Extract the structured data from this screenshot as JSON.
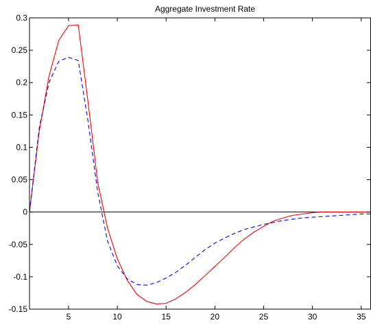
{
  "chart_data": {
    "type": "line",
    "title": "Aggregate Investment Rate",
    "xlabel": "",
    "ylabel": "",
    "xlim": [
      1,
      36
    ],
    "ylim": [
      -0.15,
      0.3
    ],
    "x_ticks": [
      5,
      10,
      15,
      20,
      25,
      30,
      35
    ],
    "y_ticks": [
      -0.15,
      -0.1,
      -0.05,
      0,
      0.05,
      0.1,
      0.15,
      0.2,
      0.25,
      0.3
    ],
    "y_tick_labels": [
      "-0.15",
      "-0.1",
      "-0.05",
      "0",
      "0.05",
      "0.1",
      "0.15",
      "0.2",
      "0.25",
      "0.3"
    ],
    "x_tick_labels": [
      "5",
      "10",
      "15",
      "20",
      "25",
      "30",
      "35"
    ],
    "zero_line": true,
    "grid": false,
    "legend": "none",
    "series": [
      {
        "color": "#ff0000",
        "style": "solid",
        "x": [
          1,
          2,
          3,
          4,
          5,
          6,
          7,
          8,
          9,
          10,
          11,
          12,
          13,
          14,
          15,
          16,
          17,
          18,
          19,
          20,
          21,
          22,
          23,
          24,
          25,
          26,
          27,
          28,
          29,
          30,
          31,
          32,
          33,
          34,
          35,
          36
        ],
        "values": [
          0.0,
          0.125,
          0.21,
          0.265,
          0.288,
          0.289,
          0.17,
          0.045,
          -0.025,
          -0.072,
          -0.105,
          -0.127,
          -0.138,
          -0.142,
          -0.141,
          -0.134,
          -0.124,
          -0.112,
          -0.098,
          -0.084,
          -0.07,
          -0.055,
          -0.042,
          -0.031,
          -0.022,
          -0.014,
          -0.009,
          -0.005,
          -0.003,
          -0.001,
          0.0,
          0.0,
          0.0,
          0.0,
          0.0,
          0.0
        ]
      },
      {
        "color": "#0000ff",
        "style": "dashed",
        "x": [
          1,
          2,
          3,
          4,
          5,
          6,
          7,
          8,
          9,
          10,
          11,
          12,
          13,
          14,
          15,
          16,
          17,
          18,
          19,
          20,
          21,
          22,
          23,
          24,
          25,
          26,
          27,
          28,
          29,
          30,
          31,
          32,
          33,
          34,
          35,
          36
        ],
        "values": [
          0.0,
          0.13,
          0.2,
          0.233,
          0.239,
          0.234,
          0.14,
          0.03,
          -0.045,
          -0.083,
          -0.103,
          -0.112,
          -0.113,
          -0.109,
          -0.102,
          -0.093,
          -0.082,
          -0.07,
          -0.058,
          -0.048,
          -0.04,
          -0.033,
          -0.027,
          -0.023,
          -0.019,
          -0.016,
          -0.013,
          -0.011,
          -0.009,
          -0.008,
          -0.007,
          -0.006,
          -0.005,
          -0.004,
          -0.003,
          -0.003
        ]
      }
    ]
  }
}
